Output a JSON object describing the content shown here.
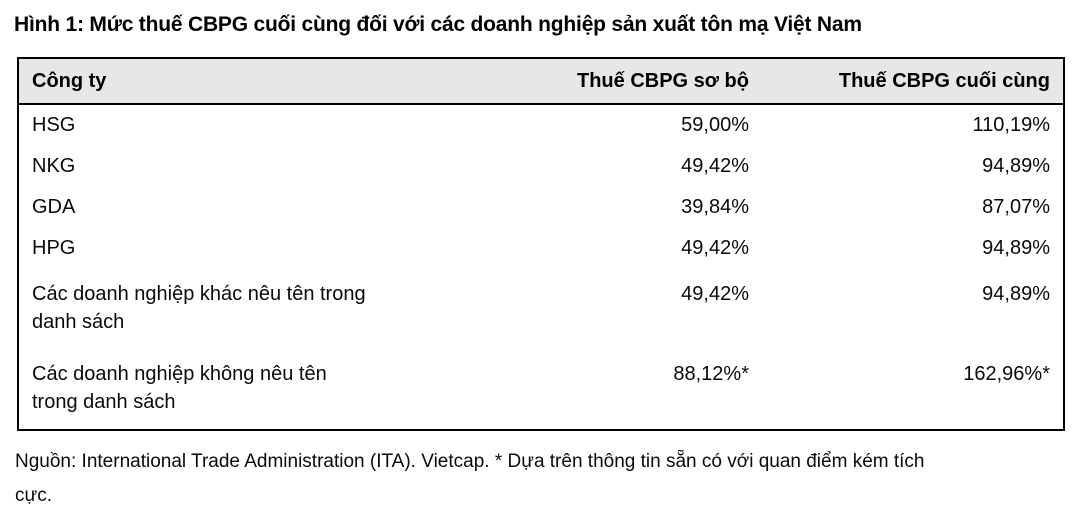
{
  "figure": {
    "title": "Hình 1: Mức thuế CBPG cuối cùng đối với các doanh nghiệp sản xuất tôn mạ Việt Nam",
    "source_note": "Nguồn: International Trade Administration (ITA). Vietcap. * Dựa trên thông tin sẵn có với quan điểm kém tích\ncực."
  },
  "table": {
    "columns": [
      "Công ty",
      "Thuế CBPG sơ bộ",
      "Thuế CBPG cuối cùng"
    ],
    "rows": [
      {
        "company": "HSG",
        "preliminary": "59,00%",
        "final": "110,19%"
      },
      {
        "company": "NKG",
        "preliminary": "49,42%",
        "final": "94,89%"
      },
      {
        "company": "GDA",
        "preliminary": "39,84%",
        "final": "87,07%"
      },
      {
        "company": "HPG",
        "preliminary": "49,42%",
        "final": "94,89%"
      },
      {
        "company": "Các doanh nghiệp khác nêu tên trong\ndanh sách",
        "preliminary": "49,42%",
        "final": "94,89%"
      },
      {
        "company": "Các doanh nghiệp không nêu tên\ntrong danh sách",
        "preliminary": "88,12%*",
        "final": "162,96%*"
      }
    ]
  },
  "chart_data": {
    "type": "table",
    "title": "Hình 1: Mức thuế CBPG cuối cùng đối với các doanh nghiệp sản xuất tôn mạ Việt Nam",
    "columns": [
      "Công ty",
      "Thuế CBPG sơ bộ",
      "Thuế CBPG cuối cùng"
    ],
    "rows": [
      [
        "HSG",
        "59,00%",
        "110,19%"
      ],
      [
        "NKG",
        "49,42%",
        "94,89%"
      ],
      [
        "GDA",
        "39,84%",
        "87,07%"
      ],
      [
        "HPG",
        "49,42%",
        "94,89%"
      ],
      [
        "Các doanh nghiệp khác nêu tên trong danh sách",
        "49,42%",
        "94,89%"
      ],
      [
        "Các doanh nghiệp không nêu tên trong danh sách",
        "88,12%*",
        "162,96%*"
      ]
    ],
    "source": "Nguồn: International Trade Administration (ITA). Vietcap.",
    "footnote": "* Dựa trên thông tin sẵn có với quan điểm kém tích cực."
  },
  "colors": {
    "header_background": "#e7e7e7",
    "border": "#000000",
    "text": "#0a0a0a"
  }
}
